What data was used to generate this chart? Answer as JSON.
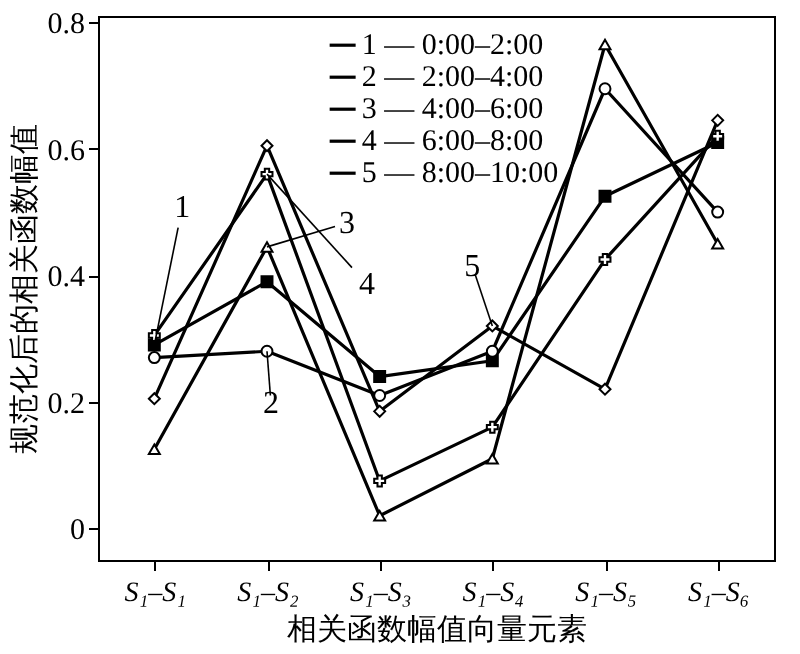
{
  "chart_data": {
    "type": "line",
    "xlabel": "相关函数幅值向量元素",
    "ylabel": "规范化后的相关函数幅值",
    "categories": [
      "S₁–S₁",
      "S₁–S₂",
      "S₁–S₃",
      "S₁–S₄",
      "S₁–S₅",
      "S₁–S₆"
    ],
    "series": [
      {
        "name": "1 — 0:00–2:00",
        "color": "#000000",
        "marker": "square",
        "values": [
          0.29,
          0.39,
          0.24,
          0.265,
          0.525,
          0.61
        ]
      },
      {
        "name": "2 — 2:00–4:00",
        "color": "#000000",
        "marker": "circle",
        "values": [
          0.27,
          0.28,
          0.21,
          0.28,
          0.695,
          0.5
        ]
      },
      {
        "name": "3 — 4:00–6:00",
        "color": "#000000",
        "marker": "triangle",
        "values": [
          0.125,
          0.445,
          0.02,
          0.11,
          0.765,
          0.45
        ]
      },
      {
        "name": "4 — 6:00–8:00",
        "color": "#000000",
        "marker": "cross",
        "values": [
          0.305,
          0.56,
          0.075,
          0.16,
          0.425,
          0.62
        ]
      },
      {
        "name": "5 — 8:00–10:00",
        "color": "#000000",
        "marker": "diamond",
        "values": [
          0.205,
          0.605,
          0.185,
          0.32,
          0.22,
          0.645
        ]
      }
    ],
    "annotations": [
      {
        "text": "1",
        "x": "S₁–S₁",
        "y": 0.29
      },
      {
        "text": "2",
        "x": "S₁–S₂",
        "y": 0.28
      },
      {
        "text": "3",
        "x": "S₁–S₂",
        "y": 0.445
      },
      {
        "text": "4",
        "x": "S₁–S₂",
        "y": 0.56
      },
      {
        "text": "5",
        "x": "S₁–S₄",
        "y": 0.32
      }
    ],
    "ylim": [
      -0.05,
      0.81
    ],
    "yticks": [
      0,
      0.2,
      0.4,
      0.6,
      0.8
    ],
    "grid": false,
    "legend": "top",
    "line_style": "solid"
  }
}
